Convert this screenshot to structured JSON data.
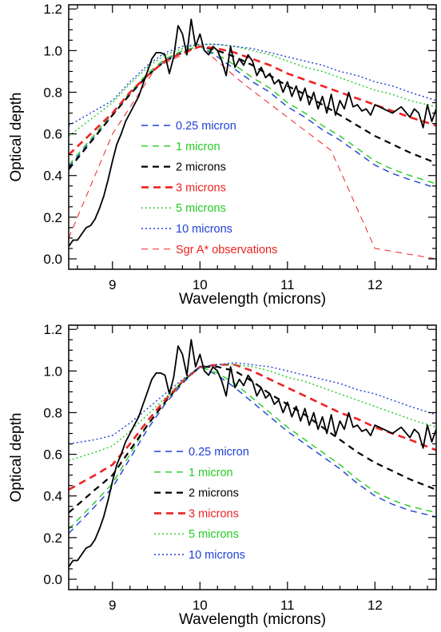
{
  "chart_data": [
    {
      "type": "line",
      "panel": "top",
      "xlabel": "Wavelength (microns)",
      "ylabel": "Optical depth",
      "xlim": [
        8.5,
        12.7
      ],
      "ylim": [
        -0.05,
        1.22
      ],
      "xticks": [
        9,
        10,
        11,
        12
      ],
      "yticks": [
        0.0,
        0.2,
        0.4,
        0.6,
        0.8,
        1.0,
        1.2
      ],
      "xtick_labels": [
        "9",
        "10",
        "11",
        "12"
      ],
      "ytick_labels": [
        "0.0",
        "0.2",
        "0.4",
        "0.6",
        "0.8",
        "1.0",
        "1.2"
      ],
      "grid": false,
      "legend_placement": "lower-left",
      "observed": {
        "color": "#000000",
        "x": [
          8.5,
          8.55,
          8.6,
          8.65,
          8.7,
          8.75,
          8.8,
          8.85,
          8.9,
          8.95,
          9.0,
          9.05,
          9.1,
          9.15,
          9.2,
          9.25,
          9.3,
          9.35,
          9.4,
          9.45,
          9.5,
          9.55,
          9.6,
          9.65,
          9.7,
          9.75,
          9.8,
          9.85,
          9.9,
          9.95,
          10.0,
          10.05,
          10.1,
          10.15,
          10.2,
          10.25,
          10.3,
          10.35,
          10.4,
          10.45,
          10.5,
          10.55,
          10.6,
          10.65,
          10.7,
          10.75,
          10.8,
          10.85,
          10.9,
          10.95,
          11.0,
          11.05,
          11.1,
          11.15,
          11.2,
          11.25,
          11.3,
          11.35,
          11.4,
          11.45,
          11.5,
          11.55,
          11.6,
          11.65,
          11.7,
          11.75,
          11.8,
          11.85,
          11.9,
          11.95,
          12.0,
          12.1,
          12.2,
          12.3,
          12.4,
          12.45,
          12.5,
          12.55,
          12.6,
          12.65,
          12.7
        ],
        "y": [
          0.06,
          0.09,
          0.09,
          0.12,
          0.15,
          0.16,
          0.19,
          0.24,
          0.3,
          0.38,
          0.47,
          0.55,
          0.6,
          0.66,
          0.7,
          0.74,
          0.78,
          0.84,
          0.9,
          0.96,
          0.99,
          0.99,
          0.98,
          0.89,
          0.97,
          1.12,
          1.08,
          0.98,
          1.15,
          1.02,
          1.08,
          1.0,
          0.98,
          1.02,
          1.0,
          0.95,
          0.88,
          1.02,
          0.92,
          0.96,
          0.93,
          0.98,
          0.95,
          0.88,
          0.92,
          0.87,
          0.89,
          0.84,
          0.86,
          0.8,
          0.85,
          0.78,
          0.83,
          0.76,
          0.82,
          0.74,
          0.8,
          0.72,
          0.78,
          0.7,
          0.79,
          0.69,
          0.76,
          0.72,
          0.8,
          0.73,
          0.74,
          0.71,
          0.72,
          0.69,
          0.74,
          0.72,
          0.7,
          0.73,
          0.68,
          0.72,
          0.7,
          0.63,
          0.74,
          0.66,
          0.72
        ]
      },
      "series": [
        {
          "name": "0.25 micron",
          "color": "#1f3fd6",
          "dash": "8,6",
          "width": 1.4,
          "x": [
            8.5,
            9.0,
            9.2,
            9.4,
            9.6,
            9.8,
            10.0,
            10.2,
            10.4,
            10.6,
            10.8,
            11.0,
            11.2,
            11.4,
            11.6,
            11.8,
            12.0,
            12.2,
            12.4,
            12.7
          ],
          "y": [
            0.44,
            0.69,
            0.79,
            0.88,
            0.95,
            1.0,
            1.02,
            0.97,
            0.91,
            0.85,
            0.8,
            0.73,
            0.68,
            0.62,
            0.57,
            0.51,
            0.45,
            0.41,
            0.38,
            0.34
          ]
        },
        {
          "name": "1 micron",
          "color": "#22cc22",
          "dash": "8,6",
          "width": 1.4,
          "x": [
            8.5,
            9.0,
            9.2,
            9.4,
            9.6,
            9.8,
            10.0,
            10.2,
            10.4,
            10.6,
            10.8,
            11.0,
            11.2,
            11.4,
            11.6,
            11.8,
            12.0,
            12.2,
            12.4,
            12.7
          ],
          "y": [
            0.45,
            0.7,
            0.8,
            0.89,
            0.96,
            1.0,
            1.02,
            0.98,
            0.93,
            0.87,
            0.82,
            0.75,
            0.7,
            0.64,
            0.59,
            0.53,
            0.47,
            0.43,
            0.4,
            0.36
          ]
        },
        {
          "name": "2 microns",
          "color": "#000000",
          "dash": "8,6",
          "width": 2.2,
          "x": [
            8.5,
            9.0,
            9.2,
            9.4,
            9.6,
            9.8,
            10.0,
            10.2,
            10.4,
            10.6,
            10.8,
            11.0,
            11.2,
            11.4,
            11.6,
            11.8,
            12.0,
            12.2,
            12.4,
            12.7
          ],
          "y": [
            0.43,
            0.69,
            0.79,
            0.88,
            0.95,
            0.99,
            1.02,
            1.0,
            0.97,
            0.93,
            0.88,
            0.83,
            0.79,
            0.74,
            0.69,
            0.64,
            0.59,
            0.55,
            0.51,
            0.46
          ]
        },
        {
          "name": "3 microns",
          "color": "#ee2222",
          "dash": "9,6",
          "width": 2.6,
          "x": [
            8.5,
            9.0,
            9.2,
            9.4,
            9.6,
            9.8,
            10.0,
            10.2,
            10.4,
            10.6,
            10.8,
            11.0,
            11.2,
            11.4,
            11.6,
            11.8,
            12.0,
            12.2,
            12.4,
            12.7
          ],
          "y": [
            0.5,
            0.7,
            0.8,
            0.88,
            0.95,
            0.99,
            1.02,
            1.01,
            0.99,
            0.96,
            0.93,
            0.89,
            0.86,
            0.83,
            0.8,
            0.77,
            0.74,
            0.71,
            0.68,
            0.64
          ]
        },
        {
          "name": "5 microns",
          "color": "#22cc22",
          "dash": "2,3",
          "width": 1.4,
          "x": [
            8.5,
            9.0,
            9.2,
            9.4,
            9.6,
            9.8,
            10.0,
            10.2,
            10.4,
            10.6,
            10.8,
            11.0,
            11.2,
            11.4,
            11.6,
            11.8,
            12.0,
            12.2,
            12.4,
            12.7
          ],
          "y": [
            0.59,
            0.75,
            0.84,
            0.92,
            0.98,
            1.01,
            1.03,
            1.03,
            1.02,
            1.0,
            0.98,
            0.95,
            0.92,
            0.9,
            0.87,
            0.84,
            0.81,
            0.79,
            0.76,
            0.73
          ]
        },
        {
          "name": "10 microns",
          "color": "#1f3fd6",
          "dash": "2,3",
          "width": 1.4,
          "x": [
            8.5,
            9.0,
            9.2,
            9.4,
            9.6,
            9.8,
            10.0,
            10.2,
            10.4,
            10.6,
            10.8,
            11.0,
            11.2,
            11.4,
            11.6,
            11.8,
            12.0,
            12.2,
            12.4,
            12.7
          ],
          "y": [
            0.64,
            0.76,
            0.85,
            0.93,
            0.99,
            1.02,
            1.03,
            1.03,
            1.02,
            1.01,
            0.99,
            0.97,
            0.95,
            0.93,
            0.9,
            0.88,
            0.85,
            0.83,
            0.8,
            0.76
          ]
        },
        {
          "name": "Sgr A* observations",
          "color": "#ee2222",
          "dash": "8,6",
          "width": 1.0,
          "x": [
            8.5,
            9.0,
            9.5,
            10.0,
            10.5,
            11.0,
            11.5,
            12.0,
            12.7
          ],
          "y": [
            0.1,
            0.6,
            0.92,
            1.02,
            0.84,
            0.68,
            0.52,
            0.05,
            0.0
          ]
        }
      ]
    },
    {
      "type": "line",
      "panel": "bottom",
      "xlabel": "Wavelength (microns)",
      "ylabel": "Optical depth",
      "xlim": [
        8.5,
        12.7
      ],
      "ylim": [
        -0.05,
        1.22
      ],
      "xticks": [
        9,
        10,
        11,
        12
      ],
      "yticks": [
        0.0,
        0.2,
        0.4,
        0.6,
        0.8,
        1.0,
        1.2
      ],
      "xtick_labels": [
        "9",
        "10",
        "11",
        "12"
      ],
      "ytick_labels": [
        "0.0",
        "0.2",
        "0.4",
        "0.6",
        "0.8",
        "1.0",
        "1.2"
      ],
      "grid": false,
      "legend_placement": "lower-left",
      "observed": {
        "color": "#000000",
        "x": [
          8.5,
          8.55,
          8.6,
          8.65,
          8.7,
          8.75,
          8.8,
          8.85,
          8.9,
          8.95,
          9.0,
          9.05,
          9.1,
          9.15,
          9.2,
          9.25,
          9.3,
          9.35,
          9.4,
          9.45,
          9.5,
          9.55,
          9.6,
          9.65,
          9.7,
          9.75,
          9.8,
          9.85,
          9.9,
          9.95,
          10.0,
          10.05,
          10.1,
          10.15,
          10.2,
          10.25,
          10.3,
          10.35,
          10.4,
          10.45,
          10.5,
          10.55,
          10.6,
          10.65,
          10.7,
          10.75,
          10.8,
          10.85,
          10.9,
          10.95,
          11.0,
          11.05,
          11.1,
          11.15,
          11.2,
          11.25,
          11.3,
          11.35,
          11.4,
          11.45,
          11.5,
          11.55,
          11.6,
          11.65,
          11.7,
          11.75,
          11.8,
          11.85,
          11.9,
          11.95,
          12.0,
          12.1,
          12.2,
          12.3,
          12.4,
          12.45,
          12.5,
          12.55,
          12.6,
          12.65,
          12.7
        ],
        "y": [
          0.06,
          0.09,
          0.09,
          0.12,
          0.15,
          0.16,
          0.19,
          0.24,
          0.3,
          0.38,
          0.47,
          0.55,
          0.6,
          0.66,
          0.7,
          0.74,
          0.78,
          0.84,
          0.9,
          0.96,
          0.99,
          0.99,
          0.98,
          0.89,
          0.97,
          1.12,
          1.08,
          0.98,
          1.15,
          1.02,
          1.08,
          1.0,
          0.98,
          1.02,
          1.0,
          0.95,
          0.88,
          1.02,
          0.92,
          0.96,
          0.93,
          0.98,
          0.95,
          0.88,
          0.92,
          0.87,
          0.89,
          0.84,
          0.86,
          0.8,
          0.85,
          0.78,
          0.83,
          0.76,
          0.82,
          0.74,
          0.8,
          0.72,
          0.78,
          0.7,
          0.79,
          0.69,
          0.76,
          0.72,
          0.8,
          0.73,
          0.74,
          0.71,
          0.72,
          0.69,
          0.74,
          0.72,
          0.7,
          0.73,
          0.68,
          0.72,
          0.7,
          0.63,
          0.74,
          0.66,
          0.72
        ]
      },
      "series": [
        {
          "name": "0.25 micron",
          "color": "#1f3fd6",
          "dash": "8,6",
          "width": 1.4,
          "x": [
            8.5,
            8.8,
            9.0,
            9.2,
            9.4,
            9.6,
            9.8,
            10.0,
            10.2,
            10.4,
            10.6,
            10.8,
            11.0,
            11.2,
            11.4,
            11.6,
            11.8,
            12.0,
            12.2,
            12.4,
            12.7
          ],
          "y": [
            0.22,
            0.35,
            0.44,
            0.58,
            0.72,
            0.84,
            0.94,
            1.02,
            0.98,
            0.92,
            0.85,
            0.78,
            0.71,
            0.65,
            0.59,
            0.53,
            0.46,
            0.4,
            0.36,
            0.33,
            0.3
          ]
        },
        {
          "name": "1 micron",
          "color": "#22cc22",
          "dash": "8,6",
          "width": 1.4,
          "x": [
            8.5,
            8.8,
            9.0,
            9.2,
            9.4,
            9.6,
            9.8,
            10.0,
            10.2,
            10.4,
            10.6,
            10.8,
            11.0,
            11.2,
            11.4,
            11.6,
            11.8,
            12.0,
            12.2,
            12.4,
            12.7
          ],
          "y": [
            0.24,
            0.37,
            0.46,
            0.6,
            0.74,
            0.85,
            0.95,
            1.02,
            0.99,
            0.94,
            0.87,
            0.8,
            0.73,
            0.67,
            0.61,
            0.55,
            0.48,
            0.42,
            0.38,
            0.35,
            0.32
          ]
        },
        {
          "name": "2 microns",
          "color": "#000000",
          "dash": "8,6",
          "width": 2.2,
          "x": [
            8.5,
            8.8,
            9.0,
            9.2,
            9.4,
            9.6,
            9.8,
            10.0,
            10.2,
            10.4,
            10.6,
            10.8,
            11.0,
            11.2,
            11.4,
            11.6,
            11.8,
            12.0,
            12.2,
            12.4,
            12.7
          ],
          "y": [
            0.32,
            0.43,
            0.5,
            0.62,
            0.74,
            0.85,
            0.95,
            1.02,
            1.02,
            1.0,
            0.95,
            0.89,
            0.84,
            0.79,
            0.73,
            0.67,
            0.61,
            0.56,
            0.52,
            0.48,
            0.43
          ]
        },
        {
          "name": "3 microns",
          "color": "#ee2222",
          "dash": "9,6",
          "width": 2.6,
          "x": [
            8.5,
            8.8,
            9.0,
            9.2,
            9.4,
            9.6,
            9.8,
            10.0,
            10.2,
            10.4,
            10.6,
            10.8,
            11.0,
            11.2,
            11.4,
            11.6,
            11.8,
            12.0,
            12.2,
            12.4,
            12.7
          ],
          "y": [
            0.43,
            0.5,
            0.55,
            0.65,
            0.76,
            0.86,
            0.95,
            1.02,
            1.03,
            1.03,
            1.0,
            0.96,
            0.92,
            0.88,
            0.84,
            0.8,
            0.77,
            0.73,
            0.7,
            0.67,
            0.62
          ]
        },
        {
          "name": "5 microns",
          "color": "#22cc22",
          "dash": "2,3",
          "width": 1.4,
          "x": [
            8.5,
            8.8,
            9.0,
            9.2,
            9.4,
            9.6,
            9.8,
            10.0,
            10.2,
            10.4,
            10.6,
            10.8,
            11.0,
            11.2,
            11.4,
            11.6,
            11.8,
            12.0,
            12.2,
            12.4,
            12.7
          ],
          "y": [
            0.57,
            0.61,
            0.64,
            0.71,
            0.79,
            0.87,
            0.95,
            1.02,
            1.03,
            1.03,
            1.02,
            1.0,
            0.97,
            0.95,
            0.92,
            0.89,
            0.86,
            0.83,
            0.8,
            0.77,
            0.73
          ]
        },
        {
          "name": "10 microns",
          "color": "#1f3fd6",
          "dash": "2,3",
          "width": 1.4,
          "x": [
            8.5,
            8.8,
            9.0,
            9.2,
            9.4,
            9.6,
            9.8,
            10.0,
            10.2,
            10.4,
            10.6,
            10.8,
            11.0,
            11.2,
            11.4,
            11.6,
            11.8,
            12.0,
            12.2,
            12.4,
            12.7
          ],
          "y": [
            0.65,
            0.67,
            0.69,
            0.75,
            0.82,
            0.89,
            0.96,
            1.02,
            1.03,
            1.04,
            1.03,
            1.02,
            1.0,
            0.98,
            0.96,
            0.94,
            0.91,
            0.89,
            0.86,
            0.83,
            0.79
          ]
        }
      ]
    }
  ]
}
